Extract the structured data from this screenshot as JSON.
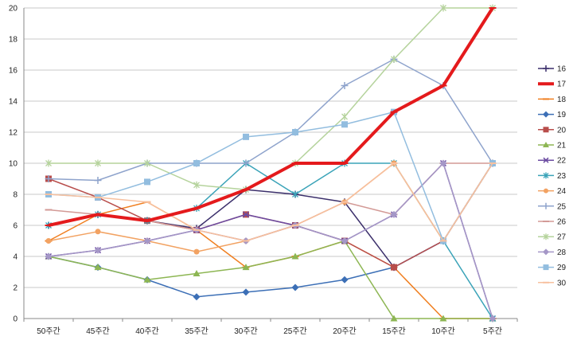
{
  "chart_data": {
    "type": "line",
    "title": "",
    "xlabel": "",
    "ylabel": "",
    "ylim": [
      0,
      20
    ],
    "yticks": [
      0,
      2,
      4,
      6,
      8,
      10,
      12,
      14,
      16,
      18,
      20
    ],
    "grid": true,
    "legend_position": "right",
    "categories": [
      "50주간",
      "45주간",
      "40주간",
      "35주간",
      "30주간",
      "25주간",
      "20주간",
      "15주간",
      "10주간",
      "5주간"
    ],
    "series": [
      {
        "name": "16",
        "color": "#3b2f6b",
        "marker": "plus",
        "width": 1.5,
        "values": [
          6,
          6.7,
          6.3,
          5.8,
          8.3,
          8,
          7.5,
          3.3,
          5,
          10
        ]
      },
      {
        "name": "17",
        "color": "#e41a1c",
        "marker": "dash",
        "width": 4,
        "values": [
          6,
          6.7,
          6.3,
          7.1,
          8.3,
          10,
          10,
          13.3,
          15,
          20
        ]
      },
      {
        "name": "18",
        "color": "#f07f20",
        "marker": "dash",
        "width": 1.5,
        "values": [
          5,
          6.7,
          7.5,
          5.7,
          3.3,
          4,
          5,
          3.3,
          0,
          0
        ]
      },
      {
        "name": "19",
        "color": "#3c6fb6",
        "marker": "diamond",
        "width": 1.5,
        "values": [
          4,
          3.3,
          2.5,
          1.4,
          1.7,
          2,
          2.5,
          3.3,
          5,
          10
        ]
      },
      {
        "name": "20",
        "color": "#b84d4b",
        "marker": "square",
        "width": 1.5,
        "values": [
          9,
          7.8,
          6.3,
          5.7,
          6.7,
          6,
          5,
          3.3,
          5,
          10
        ]
      },
      {
        "name": "21",
        "color": "#8db653",
        "marker": "triangle",
        "width": 1.5,
        "values": [
          4,
          3.3,
          2.5,
          2.9,
          3.3,
          4,
          5,
          0,
          0,
          0
        ]
      },
      {
        "name": "22",
        "color": "#6b4ba1",
        "marker": "x",
        "width": 1.5,
        "values": [
          4,
          4.4,
          5,
          5.7,
          6.7,
          6,
          5,
          6.7,
          10,
          0
        ]
      },
      {
        "name": "23",
        "color": "#3aa3b8",
        "marker": "star",
        "width": 1.5,
        "values": [
          6,
          6.7,
          6.3,
          7.1,
          10,
          8,
          10,
          10,
          5,
          0
        ]
      },
      {
        "name": "24",
        "color": "#f2a262",
        "marker": "circle",
        "width": 1.5,
        "values": [
          5,
          5.6,
          5,
          4.3,
          5,
          6,
          7.5,
          10,
          5,
          10
        ]
      },
      {
        "name": "25",
        "color": "#8ea3cc",
        "marker": "plus",
        "width": 1.5,
        "values": [
          9,
          8.9,
          10,
          10,
          10,
          12,
          15,
          16.7,
          15,
          10
        ]
      },
      {
        "name": "26",
        "color": "#d39a96",
        "marker": "dash",
        "width": 1.5,
        "values": [
          7,
          6.7,
          6.3,
          5.7,
          5,
          6,
          7.5,
          6.7,
          10,
          10
        ]
      },
      {
        "name": "27",
        "color": "#b5d39c",
        "marker": "star",
        "width": 1.5,
        "values": [
          10,
          10,
          10,
          8.6,
          8.3,
          10,
          13,
          16.7,
          20,
          20
        ]
      },
      {
        "name": "28",
        "color": "#a597c7",
        "marker": "diamond",
        "width": 1.5,
        "values": [
          4,
          4.4,
          5,
          5.7,
          5,
          6,
          5,
          6.7,
          10,
          0
        ]
      },
      {
        "name": "29",
        "color": "#92bddf",
        "marker": "square",
        "width": 1.5,
        "values": [
          8,
          7.8,
          8.8,
          10,
          11.7,
          12,
          12.5,
          13.3,
          5,
          10
        ]
      },
      {
        "name": "30",
        "color": "#f7c09e",
        "marker": "dash",
        "width": 1.5,
        "values": [
          8,
          7.8,
          7.5,
          5.7,
          5,
          6,
          7.5,
          10,
          5,
          10
        ]
      }
    ]
  }
}
